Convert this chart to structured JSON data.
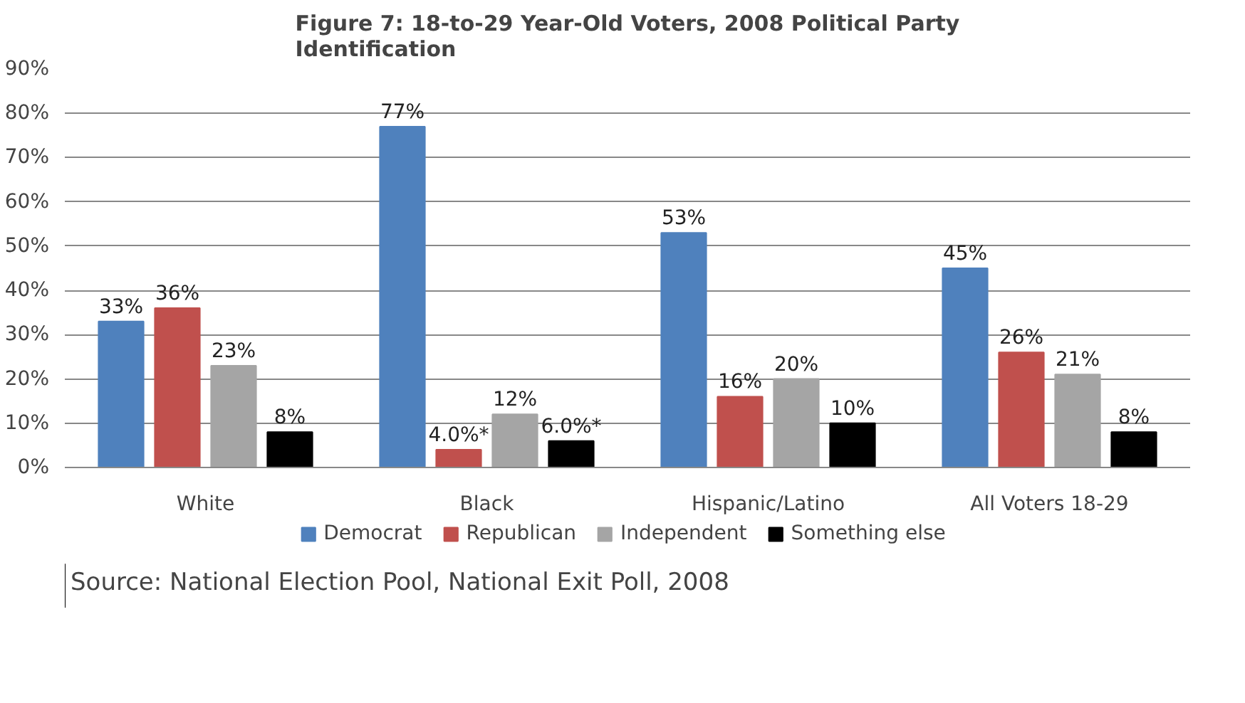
{
  "chart_data": {
    "type": "bar",
    "title": "Figure 7: 18-to-29 Year-Old Voters, 2008 Political Party Identification",
    "categories": [
      "White",
      "Black",
      "Hispanic/Latino",
      "All Voters 18-29"
    ],
    "series": [
      {
        "name": "Democrat",
        "color": "#4f81bd",
        "values": [
          33,
          77,
          53,
          45
        ],
        "value_labels": [
          "33%",
          "77%",
          "53%",
          "45%"
        ]
      },
      {
        "name": "Republican",
        "color": "#c0504d",
        "values": [
          36,
          4.0,
          16,
          26
        ],
        "value_labels": [
          "36%",
          "4.0%*",
          "16%",
          "26%"
        ]
      },
      {
        "name": "Independent",
        "color": "#a5a5a5",
        "values": [
          23,
          12,
          20,
          21
        ],
        "value_labels": [
          "23%",
          "12%",
          "20%",
          "21%"
        ]
      },
      {
        "name": "Something else",
        "color": "#000000",
        "values": [
          8,
          6.0,
          10,
          8
        ],
        "value_labels": [
          "8%",
          "6.0%*",
          "10%",
          "8%"
        ]
      }
    ],
    "ylim": [
      0,
      90
    ],
    "yticks": [
      {
        "value": 0,
        "label": "0%"
      },
      {
        "value": 10,
        "label": "10%"
      },
      {
        "value": 20,
        "label": "20%"
      },
      {
        "value": 30,
        "label": "30%"
      },
      {
        "value": 40,
        "label": "40%"
      },
      {
        "value": 50,
        "label": "50%"
      },
      {
        "value": 60,
        "label": "60%"
      },
      {
        "value": 70,
        "label": "70%"
      },
      {
        "value": 80,
        "label": "80%"
      },
      {
        "value": 90,
        "label": "90%"
      }
    ],
    "grid": "y",
    "legend": "bottom",
    "annotations": [
      "Source: National Election Pool, National Exit Poll, 2008"
    ]
  }
}
